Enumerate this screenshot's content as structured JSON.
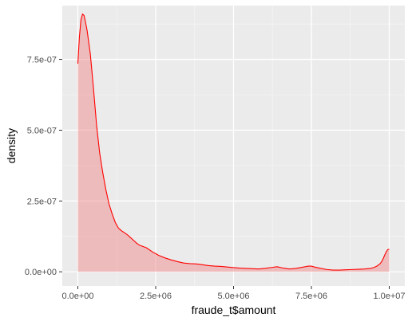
{
  "chart_data": {
    "type": "area",
    "xlabel": "fraude_t$amount",
    "ylabel": "density",
    "xlim": [
      -500000,
      10500000
    ],
    "ylim": [
      -5e-08,
      9.4e-07
    ],
    "x_ticks": [
      0,
      2500000,
      5000000,
      7500000,
      10000000
    ],
    "x_tick_labels": [
      "0.0e+00",
      "2.5e+06",
      "5.0e+06",
      "7.5e+06",
      "1.0e+07"
    ],
    "y_ticks": [
      0,
      2.5e-07,
      5e-07,
      7.5e-07
    ],
    "y_tick_labels": [
      "0.0e+00",
      "2.5e-07",
      "5.0e-07",
      "7.5e-07"
    ],
    "grid": true,
    "colors": {
      "line": "#ff0000",
      "fill": "#f08080",
      "fill_opacity": 0.45,
      "panel": "#ebebeb",
      "grid_major": "#ffffff",
      "grid_minor": "#f5f5f5"
    },
    "series": [
      {
        "x": [
          0,
          50000,
          100000,
          150000,
          200000,
          250000,
          300000,
          400000,
          500000,
          600000,
          700000,
          800000,
          900000,
          1000000,
          1100000,
          1200000,
          1300000,
          1400000,
          1500000,
          1600000,
          1700000,
          1800000,
          1900000,
          2000000,
          2200000,
          2400000,
          2600000,
          2800000,
          3000000,
          3200000,
          3400000,
          3600000,
          3800000,
          4000000,
          4200000,
          4400000,
          4600000,
          4800000,
          5000000,
          5200000,
          5400000,
          5600000,
          5800000,
          6000000,
          6200000,
          6400000,
          6600000,
          6800000,
          7000000,
          7200000,
          7400000,
          7500000,
          7600000,
          7800000,
          8000000,
          8200000,
          8400000,
          8600000,
          8800000,
          9000000,
          9200000,
          9400000,
          9500000,
          9600000,
          9700000,
          9750000,
          9800000,
          9850000,
          9900000,
          9950000,
          10000000
        ],
        "y": [
          7.35e-07,
          8.3e-07,
          8.9e-07,
          9.1e-07,
          9.05e-07,
          8.8e-07,
          8.5e-07,
          7.7e-07,
          6.5e-07,
          5.2e-07,
          4.2e-07,
          3.5e-07,
          2.9e-07,
          2.4e-07,
          2.05e-07,
          1.75e-07,
          1.55e-07,
          1.45e-07,
          1.38e-07,
          1.3e-07,
          1.2e-07,
          1.1e-07,
          1e-07,
          9.3e-08,
          8.5e-08,
          7e-08,
          5.8e-08,
          4.9e-08,
          4.2e-08,
          3.6e-08,
          3.1e-08,
          2.9e-08,
          2.8e-08,
          2.5e-08,
          2.2e-08,
          2e-08,
          1.9e-08,
          1.7e-08,
          1.5e-08,
          1.3e-08,
          1.2e-08,
          1.1e-08,
          1e-08,
          1.2e-08,
          1.5e-08,
          1.8e-08,
          1.3e-08,
          1e-08,
          1.2e-08,
          1.6e-08,
          2e-08,
          2e-08,
          1.7e-08,
          1.2e-08,
          8e-09,
          6e-09,
          6e-09,
          7e-09,
          8e-09,
          9e-09,
          1e-08,
          1.2e-08,
          1.5e-08,
          2e-08,
          2.8e-08,
          3.5e-08,
          4.5e-08,
          5.8e-08,
          7e-08,
          7.8e-08,
          8e-08
        ]
      }
    ]
  }
}
